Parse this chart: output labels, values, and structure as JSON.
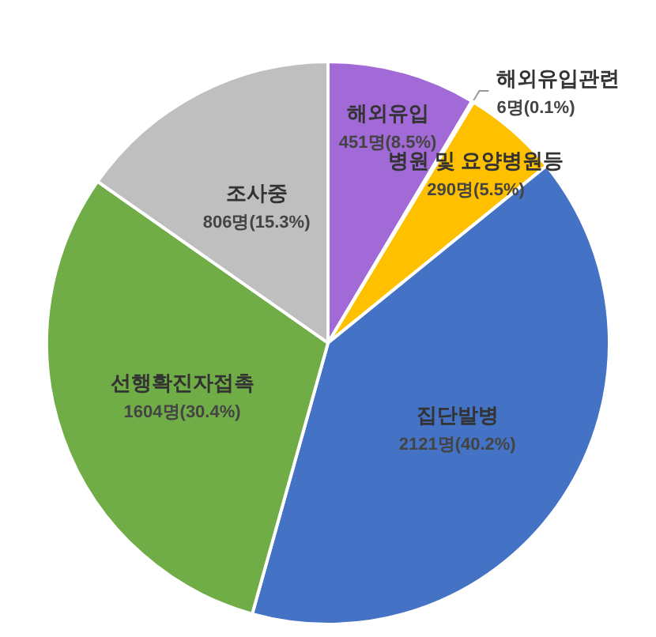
{
  "chart_data": {
    "type": "pie",
    "categories": [
      "해외유입",
      "해외유입관련",
      "병원 및 요양병원등",
      "집단발병",
      "선행확진자접촉",
      "조사중"
    ],
    "values": [
      451,
      6,
      290,
      2121,
      1604,
      806
    ],
    "value_labels": [
      "451명(8.5%)",
      "6명(0.1%)",
      "290명(5.5%)",
      "2121명(40.2%)",
      "1604명(30.4%)",
      "806명(15.3%)"
    ],
    "colors": [
      "#a16ad6",
      "#2f5597",
      "#ffc000",
      "#4472c4",
      "#70ad47",
      "#bfbfbf"
    ],
    "legend": false
  }
}
